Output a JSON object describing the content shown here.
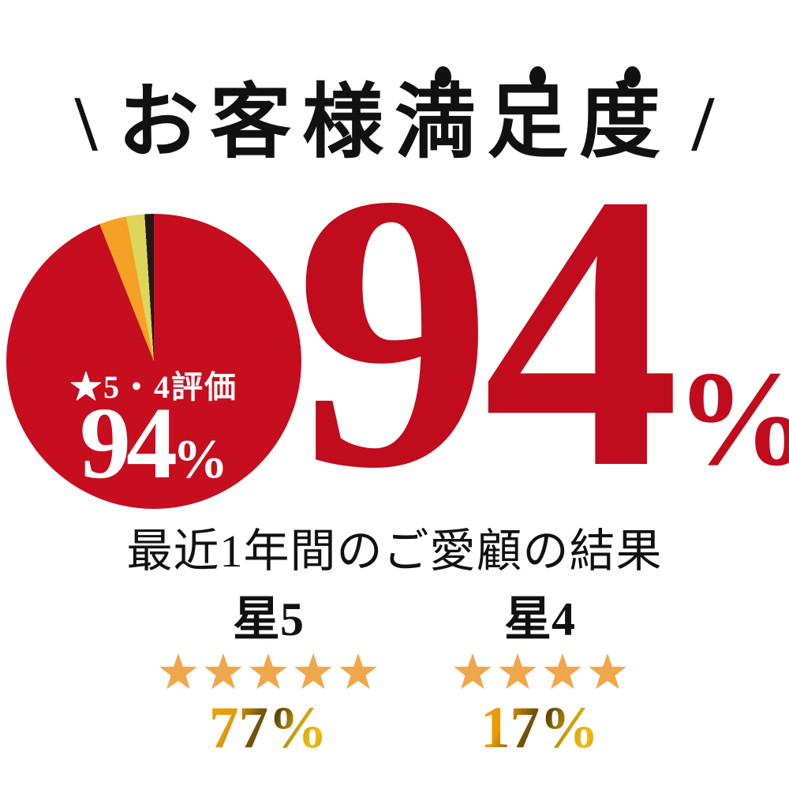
{
  "header": {
    "decor_left": "\\",
    "title": "お客様満足度",
    "decor_right": "/",
    "emphasis_dots": 3
  },
  "pie": {
    "label_line": "★5・4評価",
    "value": "94",
    "percent_sign": "%"
  },
  "big_stat": {
    "value": "94",
    "percent_sign": "%"
  },
  "subtitle": {
    "text": "最近1年間のご愛顧の結果"
  },
  "ratings": [
    {
      "label": "星5",
      "stars": 5,
      "percent_label": "77%"
    },
    {
      "label": "星4",
      "stars": 4,
      "percent_label": "17%"
    }
  ],
  "chart_data": {
    "type": "pie",
    "title": "お客様満足度",
    "center_label": "★5・4評価 94%",
    "start_angle_deg": 0,
    "direction": "clockwise",
    "segments": [
      {
        "label": "★5・4評価",
        "value": 94,
        "color": "#c60e1f"
      },
      {
        "label": "",
        "value": 3,
        "color": "#f5a126"
      },
      {
        "label": "",
        "value": 2,
        "color": "#ddd65a"
      },
      {
        "label": "",
        "value": 1,
        "color": "#231815"
      }
    ],
    "breakdown": [
      {
        "label": "星5",
        "stars": 5,
        "percent": 77
      },
      {
        "label": "星4",
        "stars": 4,
        "percent": 17
      }
    ],
    "note": "最近1年間のご愛顧の結果"
  },
  "colors": {
    "background": "#ffffff",
    "text_black": "#111111",
    "pie_red": "#c60e1f",
    "pie_orange": "#f5a126",
    "pie_yellow": "#ddd65a",
    "pie_black": "#231815",
    "big_red": "#c00c1c",
    "star_orange": "#f0a64b",
    "gold_dark": "#5f4604",
    "gold_bright": "#f6bb10",
    "white": "#ffffff"
  }
}
